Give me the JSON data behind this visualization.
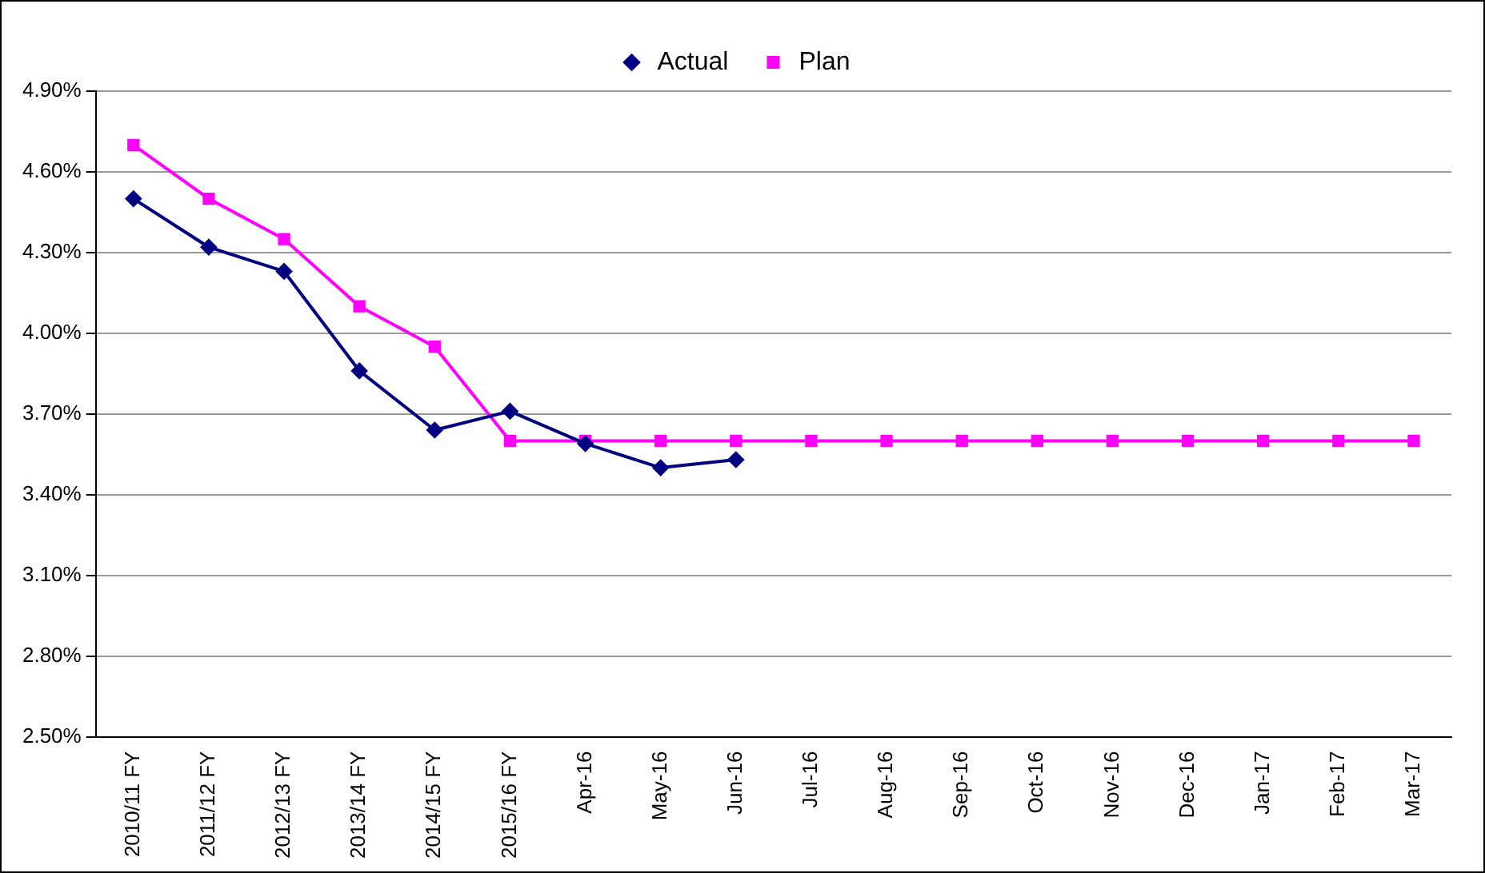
{
  "chart_data": {
    "type": "line",
    "categories": [
      "2010/11 FY",
      "2011/12 FY",
      "2012/13 FY",
      "2013/14 FY",
      "2014/15 FY",
      "2015/16 FY",
      "Apr-16",
      "May-16",
      "Jun-16",
      "Jul-16",
      "Aug-16",
      "Sep-16",
      "Oct-16",
      "Nov-16",
      "Dec-16",
      "Jan-17",
      "Feb-17",
      "Mar-17"
    ],
    "series": [
      {
        "name": "Actual",
        "color": "#000080",
        "marker": "diamond",
        "values": [
          4.5,
          4.32,
          4.23,
          3.86,
          3.64,
          3.71,
          3.59,
          3.5,
          3.53,
          null,
          null,
          null,
          null,
          null,
          null,
          null,
          null,
          null
        ]
      },
      {
        "name": "Plan",
        "color": "#ff00ff",
        "marker": "square",
        "values": [
          4.7,
          4.5,
          4.35,
          4.1,
          3.95,
          3.6,
          3.6,
          3.6,
          3.6,
          3.6,
          3.6,
          3.6,
          3.6,
          3.6,
          3.6,
          3.6,
          3.6,
          3.6
        ]
      }
    ],
    "ylim": [
      2.5,
      4.9
    ],
    "yticks": [
      {
        "value": 2.5,
        "label": "2.50%"
      },
      {
        "value": 2.8,
        "label": "2.80%"
      },
      {
        "value": 3.1,
        "label": "3.10%"
      },
      {
        "value": 3.4,
        "label": "3.40%"
      },
      {
        "value": 3.7,
        "label": "3.70%"
      },
      {
        "value": 4.0,
        "label": "4.00%"
      },
      {
        "value": 4.3,
        "label": "4.30%"
      },
      {
        "value": 4.6,
        "label": "4.60%"
      },
      {
        "value": 4.9,
        "label": "4.90%"
      }
    ],
    "grid": "y",
    "legend": "top",
    "line_style": "solid"
  }
}
